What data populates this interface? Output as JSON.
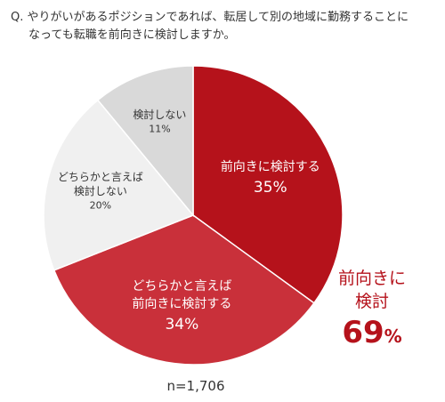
{
  "question": {
    "line1": "Q. やりがいがあるポジションであれば、転居して別の地域に勤務することに",
    "line2": "なっても転職を前向きに検討しますか。"
  },
  "summary": {
    "label_line1": "前向きに",
    "label_line2": "検討",
    "value": "69",
    "unit": "%"
  },
  "total_label": "n=1,706",
  "colors": {
    "slice1": "#b5121b",
    "slice2": "#c9303a",
    "slice3": "#f0f0f0",
    "slice4": "#d9d9d9",
    "dark_text": "#333333",
    "light_text": "#ffffff",
    "accent": "#b5121b"
  },
  "chart_data": {
    "type": "pie",
    "start": "12 o'clock",
    "direction": "clockwise",
    "slices": [
      {
        "label_lines": [
          "前向きに検討する"
        ],
        "value": 35,
        "value_text": "35%"
      },
      {
        "label_lines": [
          "どちらかと言えば",
          "前向きに検討する"
        ],
        "value": 34,
        "value_text": "34%"
      },
      {
        "label_lines": [
          "どちらかと言えば",
          "検討しない"
        ],
        "value": 20,
        "value_text": "20%"
      },
      {
        "label_lines": [
          "検討しない"
        ],
        "value": 11,
        "value_text": "11%"
      }
    ]
  }
}
